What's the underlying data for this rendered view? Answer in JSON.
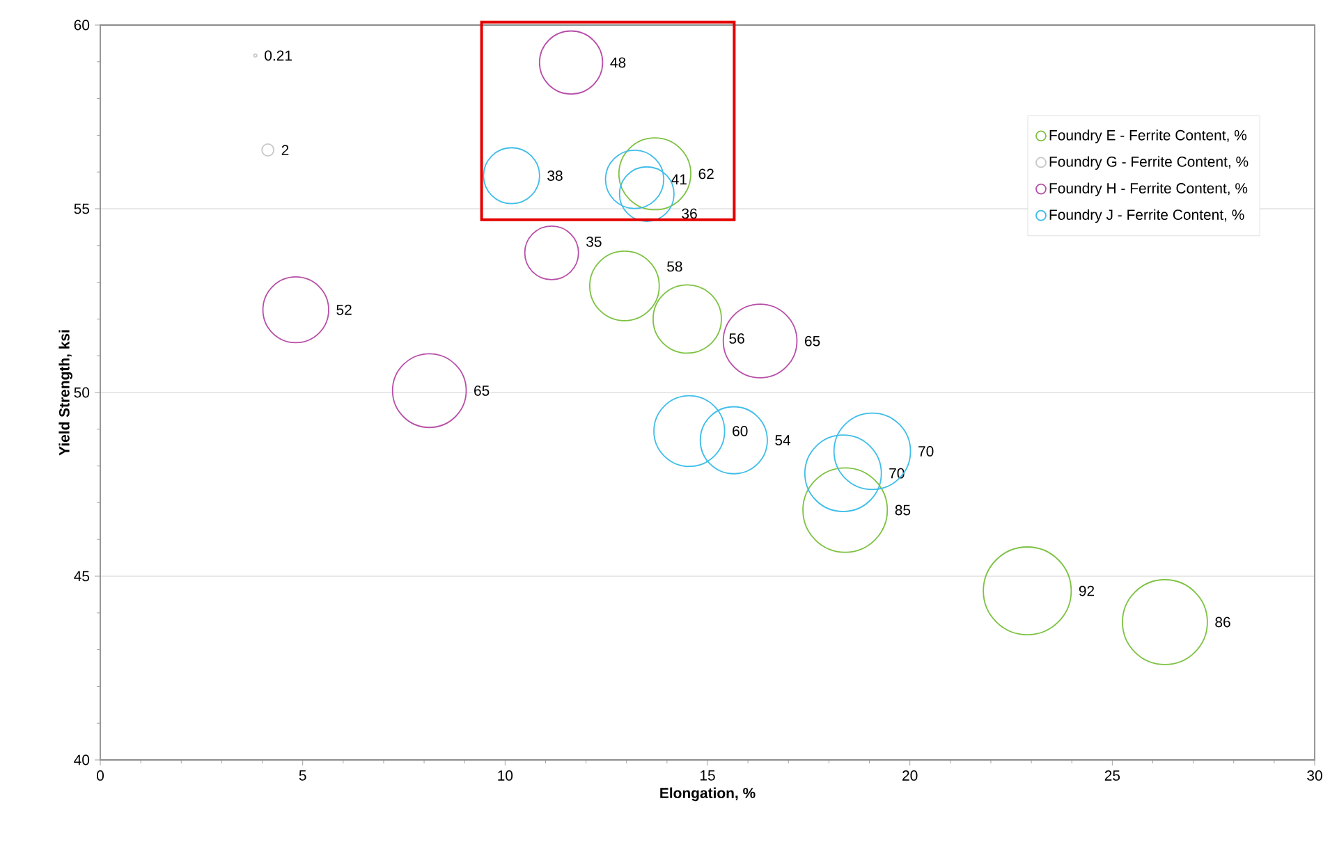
{
  "chart_data": {
    "type": "bubble",
    "xlabel": "Elongation, %",
    "ylabel": "Yield Strength, ksi",
    "xlim": [
      0,
      30
    ],
    "ylim": [
      40,
      60
    ],
    "xticks": [
      0,
      5,
      10,
      15,
      20,
      25,
      30
    ],
    "yticks": [
      40,
      45,
      50,
      55,
      60
    ],
    "grid": "y",
    "legend": "top right",
    "marker": "circle",
    "series": [
      {
        "name": "Foundry E - Ferrite Content, %",
        "color": "#7dc242",
        "x": [
          13.7,
          12.95,
          14.5,
          18.4,
          22.9,
          26.3
        ],
        "values": [
          55.95,
          52.9,
          52.0,
          46.8,
          44.6,
          43.75
        ],
        "sizes": [
          62,
          58,
          56,
          85,
          92,
          86
        ],
        "value_labels": [
          "62",
          "58",
          "56",
          "85",
          "92",
          "86"
        ]
      },
      {
        "name": "Foundry G - Ferrite Content, %",
        "color": "#c8c8c8",
        "x": [
          3.83,
          4.14
        ],
        "values": [
          59.17,
          56.6
        ],
        "sizes": [
          0.21,
          2
        ],
        "value_labels": [
          "0.21",
          "2"
        ]
      },
      {
        "name": "Foundry H - Ferrite Content, %",
        "color": "#b84fa8",
        "x": [
          11.63,
          11.15,
          4.83,
          8.13,
          16.3
        ],
        "values": [
          58.98,
          53.8,
          52.25,
          50.05,
          51.4
        ],
        "sizes": [
          48,
          35,
          52,
          65,
          65
        ],
        "value_labels": [
          "48",
          "35",
          "52",
          "65",
          "65"
        ]
      },
      {
        "name": "Foundry J - Ferrite Content, %",
        "color": "#3fbde9",
        "x": [
          10.16,
          13.2,
          13.5,
          14.55,
          15.65,
          19.07,
          18.35
        ],
        "values": [
          55.9,
          55.8,
          55.4,
          48.95,
          48.7,
          48.4,
          47.8
        ],
        "sizes": [
          38,
          41,
          36,
          60,
          54,
          70,
          70
        ],
        "value_labels": [
          "38",
          "41",
          "36",
          "60",
          "54",
          "70",
          "70"
        ]
      }
    ]
  }
}
